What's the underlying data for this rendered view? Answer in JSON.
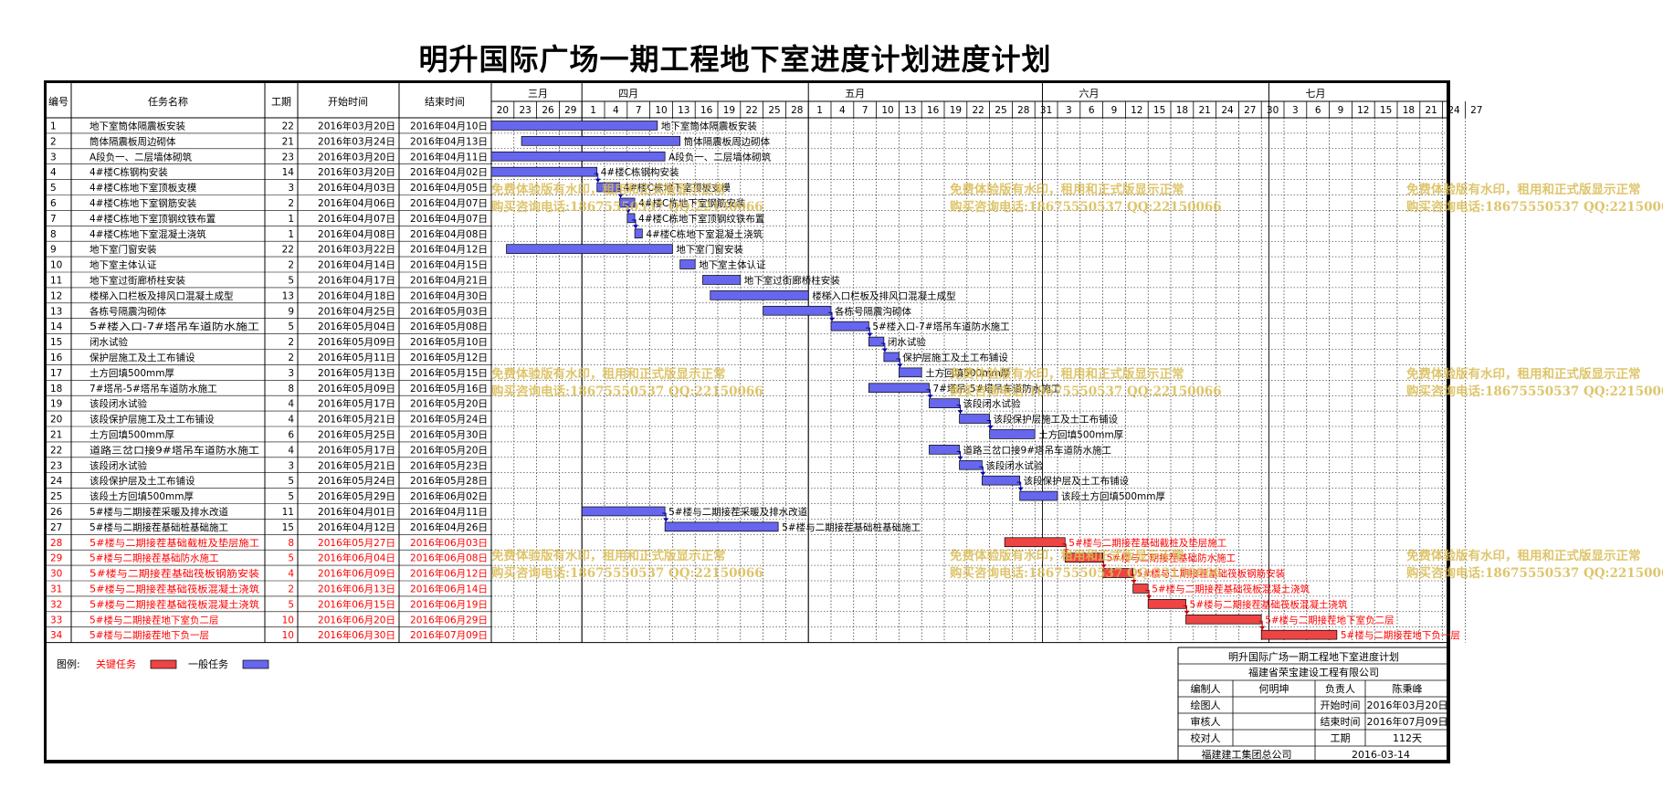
{
  "title": "明升国际广场一期工程地下室进度计划进度计划",
  "headers": {
    "id": "编号",
    "name": "任务名称",
    "duration": "工期",
    "start": "开始时间",
    "end": "结束时间"
  },
  "months": [
    {
      "label": "三月",
      "days": [
        "20",
        "23",
        "26",
        "29"
      ]
    },
    {
      "label": "四月",
      "days": [
        "1",
        "4",
        "7",
        "10",
        "13",
        "16",
        "19",
        "22",
        "25",
        "28"
      ]
    },
    {
      "label": "五月",
      "days": [
        "1",
        "4",
        "7",
        "10",
        "13",
        "16",
        "19",
        "22",
        "25",
        "28",
        "31"
      ]
    },
    {
      "label": "六月",
      "days": [
        "3",
        "6",
        "9",
        "12",
        "15",
        "18",
        "21",
        "24",
        "27"
      ]
    },
    {
      "label": "七月",
      "days": [
        "30",
        "3",
        "6",
        "9",
        "12",
        "15",
        "18",
        "21",
        "24",
        "27"
      ]
    }
  ],
  "colors": {
    "normal": "#6666ee",
    "critical": "#ee4444",
    "critical_text": "#ff0000",
    "grid": "#000000"
  },
  "chart_data": {
    "type": "gantt",
    "x_axis": {
      "unit": "day",
      "range": [
        "2016-03-20",
        "2016-07-29"
      ],
      "tick_interval_days": 3
    },
    "tasks": [
      {
        "id": "1",
        "name": "地下室筒体隔震板安装",
        "duration": "22",
        "start": "2016年03月20日",
        "end": "2016年04月10日",
        "critical": false,
        "label": "地下室筒体隔震板安装"
      },
      {
        "id": "2",
        "name": "筒体隔震板周边砌体",
        "duration": "21",
        "start": "2016年03月24日",
        "end": "2016年04月13日",
        "critical": false,
        "label": "筒体隔震板周边砌体"
      },
      {
        "id": "3",
        "name": "A段负一、二层墙体砌筑",
        "duration": "23",
        "start": "2016年03月20日",
        "end": "2016年04月11日",
        "critical": false,
        "label": "A段负一、二层墙体砌筑"
      },
      {
        "id": "4",
        "name": "4#楼C栋钢构安装",
        "duration": "14",
        "start": "2016年03月20日",
        "end": "2016年04月02日",
        "critical": false,
        "label": "4#楼C栋钢构安装"
      },
      {
        "id": "5",
        "name": "4#楼C栋地下室顶板支模",
        "duration": "3",
        "start": "2016年04月03日",
        "end": "2016年04月05日",
        "critical": false,
        "label": "4#楼C栋地下室顶板支模"
      },
      {
        "id": "6",
        "name": "4#楼C栋地下室钢筋安装",
        "duration": "2",
        "start": "2016年04月06日",
        "end": "2016年04月07日",
        "critical": false,
        "label": "4#楼C栋地下室钢筋安装"
      },
      {
        "id": "7",
        "name": "4#楼C栋地下室顶钢纹铁布置",
        "duration": "1",
        "start": "2016年04月07日",
        "end": "2016年04月07日",
        "critical": false,
        "label": "4#楼C栋地下室顶钢纹铁布置"
      },
      {
        "id": "8",
        "name": "4#楼C栋地下室混凝土浇筑",
        "duration": "1",
        "start": "2016年04月08日",
        "end": "2016年04月08日",
        "critical": false,
        "label": "4#楼C栋地下室混凝土浇筑"
      },
      {
        "id": "9",
        "name": "地下室门窗安装",
        "duration": "22",
        "start": "2016年03月22日",
        "end": "2016年04月12日",
        "critical": false,
        "label": "地下室门窗安装"
      },
      {
        "id": "10",
        "name": "地下室主体认证",
        "duration": "2",
        "start": "2016年04月14日",
        "end": "2016年04月15日",
        "critical": false,
        "label": "地下室主体认证"
      },
      {
        "id": "11",
        "name": "地下室过街廊桥柱安装",
        "duration": "5",
        "start": "2016年04月17日",
        "end": "2016年04月21日",
        "critical": false,
        "label": "地下室过街廊桥柱安装"
      },
      {
        "id": "12",
        "name": "楼梯入口栏板及排风口混凝土成型",
        "duration": "13",
        "start": "2016年04月18日",
        "end": "2016年04月30日",
        "critical": false,
        "label": "楼梯入口栏板及排风口混凝土成型"
      },
      {
        "id": "13",
        "name": "各栋号隔震沟砌体",
        "duration": "9",
        "start": "2016年04月25日",
        "end": "2016年05月03日",
        "critical": false,
        "label": "各栋号隔震沟砌体"
      },
      {
        "id": "14",
        "name": "5#楼入口-7#塔吊车道防水施工",
        "duration": "5",
        "start": "2016年05月04日",
        "end": "2016年05月08日",
        "critical": false,
        "label": "5#楼入口-7#塔吊车道防水施工"
      },
      {
        "id": "15",
        "name": "闭水试验",
        "duration": "2",
        "start": "2016年05月09日",
        "end": "2016年05月10日",
        "critical": false,
        "label": "闭水试验"
      },
      {
        "id": "16",
        "name": "保护层施工及土工布铺设",
        "duration": "2",
        "start": "2016年05月11日",
        "end": "2016年05月12日",
        "critical": false,
        "label": "保护层施工及土工布铺设"
      },
      {
        "id": "17",
        "name": "土方回填500mm厚",
        "duration": "3",
        "start": "2016年05月13日",
        "end": "2016年05月15日",
        "critical": false,
        "label": "土方回填500mm厚"
      },
      {
        "id": "18",
        "name": "7#塔吊-5#塔吊车道防水施工",
        "duration": "8",
        "start": "2016年05月09日",
        "end": "2016年05月16日",
        "critical": false,
        "label": "7#塔吊-5#塔吊车道防水施工"
      },
      {
        "id": "19",
        "name": "该段闭水试验",
        "duration": "4",
        "start": "2016年05月17日",
        "end": "2016年05月20日",
        "critical": false,
        "label": "该段闭水试验"
      },
      {
        "id": "20",
        "name": "该段保护层施工及土工布铺设",
        "duration": "4",
        "start": "2016年05月21日",
        "end": "2016年05月24日",
        "critical": false,
        "label": "该段保护层施工及土工布铺设"
      },
      {
        "id": "21",
        "name": "土方回填500mm厚",
        "duration": "6",
        "start": "2016年05月25日",
        "end": "2016年05月30日",
        "critical": false,
        "label": "土方回填500mm厚"
      },
      {
        "id": "22",
        "name": "道路三岔口接9#塔吊车道防水施工",
        "duration": "4",
        "start": "2016年05月17日",
        "end": "2016年05月20日",
        "critical": false,
        "label": "道路三岔口接9#塔吊车道防水施工"
      },
      {
        "id": "23",
        "name": "该段闭水试验",
        "duration": "3",
        "start": "2016年05月21日",
        "end": "2016年05月23日",
        "critical": false,
        "label": "该段闭水试验"
      },
      {
        "id": "24",
        "name": "该段保护层及土工布铺设",
        "duration": "5",
        "start": "2016年05月24日",
        "end": "2016年05月28日",
        "critical": false,
        "label": "该段保护层及土工布铺设"
      },
      {
        "id": "25",
        "name": "该段土方回填500mm厚",
        "duration": "5",
        "start": "2016年05月29日",
        "end": "2016年06月02日",
        "critical": false,
        "label": "该段土方回填500mm厚"
      },
      {
        "id": "26",
        "name": "5#楼与二期接茬采暖及排水改道",
        "duration": "11",
        "start": "2016年04月01日",
        "end": "2016年04月11日",
        "critical": false,
        "label": "5#楼与二期接茬采暖及排水改道"
      },
      {
        "id": "27",
        "name": "5#楼与二期接茬基础桩基础施工",
        "duration": "15",
        "start": "2016年04月12日",
        "end": "2016年04月26日",
        "critical": false,
        "label": "5#楼与二期接茬基础桩基础施工"
      },
      {
        "id": "28",
        "name": "5#楼与二期接茬基础截桩及垫层施工",
        "duration": "8",
        "start": "2016年05月27日",
        "end": "2016年06月03日",
        "critical": true,
        "label": "5#楼与二期接茬基础截桩及垫层施工"
      },
      {
        "id": "29",
        "name": "5#楼与二期接茬基础防水施工",
        "duration": "5",
        "start": "2016年06月04日",
        "end": "2016年06月08日",
        "critical": true,
        "label": "5#楼与二期接茬基础防水施工"
      },
      {
        "id": "30",
        "name": "5#楼与二期接茬基础筏板钢筋安装",
        "duration": "4",
        "start": "2016年06月09日",
        "end": "2016年06月12日",
        "critical": true,
        "label": "5#楼与二期接茬基础筏板钢筋安装"
      },
      {
        "id": "31",
        "name": "5#楼与二期接茬基础筏板混凝土浇筑",
        "duration": "2",
        "start": "2016年06月13日",
        "end": "2016年06月14日",
        "critical": true,
        "label": "5#楼与二期接茬基础筏板混凝土浇筑"
      },
      {
        "id": "32",
        "name": "5#楼与二期接茬基础筏板混凝土浇筑",
        "duration": "5",
        "start": "2016年06月15日",
        "end": "2016年06月19日",
        "critical": true,
        "label": "5#楼与二期接茬基础筏板混凝土浇筑"
      },
      {
        "id": "33",
        "name": "5#楼与二期接茬地下室负二层",
        "duration": "10",
        "start": "2016年06月20日",
        "end": "2016年06月29日",
        "critical": true,
        "label": "5#楼与二期接茬地下室负二层"
      },
      {
        "id": "34",
        "name": "5#楼与二期接茬地下负一层",
        "duration": "10",
        "start": "2016年06月30日",
        "end": "2016年07月09日",
        "critical": true,
        "label": "5#楼与二期接茬地下负一层"
      }
    ]
  },
  "legend": {
    "label": "图例:",
    "critical": "关键任务",
    "normal": "一般任务"
  },
  "info": {
    "title": "明升国际广场一期工程地下室进度计划",
    "company": "福建省荣宝建设工程有限公司",
    "rows": [
      [
        "编制人",
        "何明坤",
        "负责人",
        "陈秉峰"
      ],
      [
        "绘图人",
        "",
        "开始时间",
        "2016年03月20日"
      ],
      [
        "审核人",
        "",
        "结束时间",
        "2016年07月09日"
      ],
      [
        "校对人",
        "",
        "工期",
        "112天"
      ]
    ],
    "footer_left": "福建建工集团总公司",
    "footer_right": "2016-03-14"
  },
  "watermark": {
    "line1": "免费体验版有水印，租用和正式版显示正常",
    "line2": "购买咨询电话:18675550537 QQ:22150066"
  }
}
